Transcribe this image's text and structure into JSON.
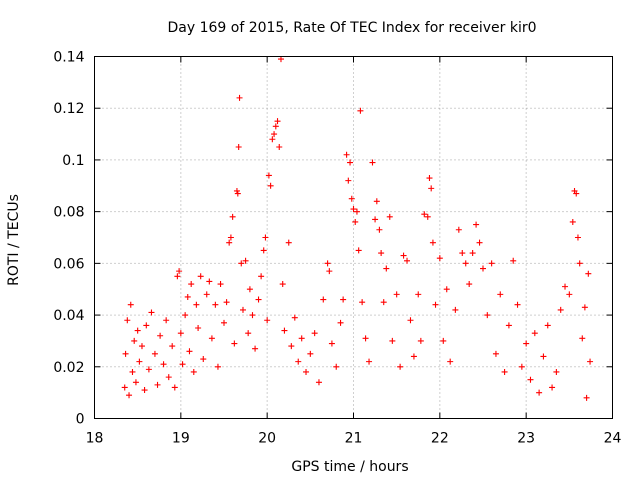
{
  "chart_data": {
    "type": "scatter",
    "title": "Day 169 of 2015, Rate Of TEC Index for receiver kir0",
    "xlabel": "GPS time / hours",
    "ylabel": "ROTI / TECUs",
    "xlim": [
      18,
      24
    ],
    "ylim": [
      0,
      0.14
    ],
    "xticks": [
      18,
      19,
      20,
      21,
      22,
      23,
      24
    ],
    "xtick_labels": [
      "18",
      "19",
      "20",
      "21",
      "22",
      "23",
      "24"
    ],
    "yticks": [
      0,
      0.02,
      0.04,
      0.06,
      0.08,
      0.1,
      0.12,
      0.14
    ],
    "ytick_labels": [
      "0",
      "0.02",
      "0.04",
      "0.06",
      "0.08",
      "0.1",
      "0.12",
      "0.14"
    ],
    "grid": true,
    "marker": "plus",
    "color": "#ff0000",
    "series": [
      {
        "name": "ROTI",
        "points": [
          [
            18.35,
            0.012
          ],
          [
            18.36,
            0.025
          ],
          [
            18.38,
            0.038
          ],
          [
            18.4,
            0.009
          ],
          [
            18.42,
            0.044
          ],
          [
            18.44,
            0.018
          ],
          [
            18.46,
            0.03
          ],
          [
            18.48,
            0.014
          ],
          [
            18.5,
            0.034
          ],
          [
            18.52,
            0.022
          ],
          [
            18.55,
            0.028
          ],
          [
            18.58,
            0.011
          ],
          [
            18.6,
            0.036
          ],
          [
            18.63,
            0.019
          ],
          [
            18.66,
            0.041
          ],
          [
            18.7,
            0.025
          ],
          [
            18.73,
            0.013
          ],
          [
            18.76,
            0.032
          ],
          [
            18.8,
            0.021
          ],
          [
            18.83,
            0.038
          ],
          [
            18.86,
            0.016
          ],
          [
            18.9,
            0.028
          ],
          [
            18.93,
            0.012
          ],
          [
            18.96,
            0.055
          ],
          [
            18.98,
            0.057
          ],
          [
            19.0,
            0.033
          ],
          [
            19.02,
            0.021
          ],
          [
            19.05,
            0.04
          ],
          [
            19.08,
            0.047
          ],
          [
            19.1,
            0.026
          ],
          [
            19.12,
            0.052
          ],
          [
            19.15,
            0.018
          ],
          [
            19.18,
            0.044
          ],
          [
            19.2,
            0.035
          ],
          [
            19.23,
            0.055
          ],
          [
            19.26,
            0.023
          ],
          [
            19.3,
            0.048
          ],
          [
            19.33,
            0.053
          ],
          [
            19.36,
            0.031
          ],
          [
            19.4,
            0.044
          ],
          [
            19.43,
            0.02
          ],
          [
            19.46,
            0.052
          ],
          [
            19.5,
            0.037
          ],
          [
            19.53,
            0.045
          ],
          [
            19.56,
            0.068
          ],
          [
            19.58,
            0.07
          ],
          [
            19.6,
            0.078
          ],
          [
            19.62,
            0.029
          ],
          [
            19.65,
            0.088
          ],
          [
            19.66,
            0.087
          ],
          [
            19.67,
            0.105
          ],
          [
            19.68,
            0.124
          ],
          [
            19.7,
            0.06
          ],
          [
            19.72,
            0.042
          ],
          [
            19.75,
            0.061
          ],
          [
            19.78,
            0.033
          ],
          [
            19.8,
            0.05
          ],
          [
            19.83,
            0.04
          ],
          [
            19.86,
            0.027
          ],
          [
            19.9,
            0.046
          ],
          [
            19.93,
            0.055
          ],
          [
            19.96,
            0.065
          ],
          [
            19.98,
            0.07
          ],
          [
            20.0,
            0.038
          ],
          [
            20.02,
            0.094
          ],
          [
            20.04,
            0.09
          ],
          [
            20.06,
            0.108
          ],
          [
            20.08,
            0.11
          ],
          [
            20.1,
            0.113
          ],
          [
            20.12,
            0.115
          ],
          [
            20.14,
            0.105
          ],
          [
            20.16,
            0.139
          ],
          [
            20.18,
            0.052
          ],
          [
            20.2,
            0.034
          ],
          [
            20.25,
            0.068
          ],
          [
            20.28,
            0.028
          ],
          [
            20.32,
            0.039
          ],
          [
            20.36,
            0.022
          ],
          [
            20.4,
            0.031
          ],
          [
            20.45,
            0.018
          ],
          [
            20.5,
            0.025
          ],
          [
            20.55,
            0.033
          ],
          [
            20.6,
            0.014
          ],
          [
            20.65,
            0.046
          ],
          [
            20.7,
            0.06
          ],
          [
            20.72,
            0.057
          ],
          [
            20.75,
            0.029
          ],
          [
            20.8,
            0.02
          ],
          [
            20.85,
            0.037
          ],
          [
            20.88,
            0.046
          ],
          [
            20.92,
            0.102
          ],
          [
            20.94,
            0.092
          ],
          [
            20.96,
            0.099
          ],
          [
            20.98,
            0.085
          ],
          [
            21.0,
            0.081
          ],
          [
            21.02,
            0.076
          ],
          [
            21.04,
            0.08
          ],
          [
            21.06,
            0.065
          ],
          [
            21.08,
            0.119
          ],
          [
            21.1,
            0.045
          ],
          [
            21.14,
            0.031
          ],
          [
            21.18,
            0.022
          ],
          [
            21.22,
            0.099
          ],
          [
            21.25,
            0.077
          ],
          [
            21.27,
            0.084
          ],
          [
            21.3,
            0.073
          ],
          [
            21.32,
            0.064
          ],
          [
            21.35,
            0.045
          ],
          [
            21.38,
            0.058
          ],
          [
            21.42,
            0.078
          ],
          [
            21.45,
            0.03
          ],
          [
            21.5,
            0.048
          ],
          [
            21.54,
            0.02
          ],
          [
            21.58,
            0.063
          ],
          [
            21.62,
            0.061
          ],
          [
            21.66,
            0.038
          ],
          [
            21.7,
            0.024
          ],
          [
            21.75,
            0.048
          ],
          [
            21.78,
            0.03
          ],
          [
            21.82,
            0.079
          ],
          [
            21.86,
            0.078
          ],
          [
            21.88,
            0.093
          ],
          [
            21.9,
            0.089
          ],
          [
            21.92,
            0.068
          ],
          [
            21.95,
            0.044
          ],
          [
            22.0,
            0.062
          ],
          [
            22.04,
            0.03
          ],
          [
            22.08,
            0.05
          ],
          [
            22.12,
            0.022
          ],
          [
            22.18,
            0.042
          ],
          [
            22.22,
            0.073
          ],
          [
            22.26,
            0.064
          ],
          [
            22.3,
            0.06
          ],
          [
            22.34,
            0.052
          ],
          [
            22.38,
            0.064
          ],
          [
            22.42,
            0.075
          ],
          [
            22.46,
            0.068
          ],
          [
            22.5,
            0.058
          ],
          [
            22.55,
            0.04
          ],
          [
            22.6,
            0.06
          ],
          [
            22.65,
            0.025
          ],
          [
            22.7,
            0.048
          ],
          [
            22.75,
            0.018
          ],
          [
            22.8,
            0.036
          ],
          [
            22.85,
            0.061
          ],
          [
            22.9,
            0.044
          ],
          [
            22.95,
            0.02
          ],
          [
            23.0,
            0.029
          ],
          [
            23.05,
            0.015
          ],
          [
            23.1,
            0.033
          ],
          [
            23.15,
            0.01
          ],
          [
            23.2,
            0.024
          ],
          [
            23.25,
            0.036
          ],
          [
            23.3,
            0.012
          ],
          [
            23.35,
            0.018
          ],
          [
            23.4,
            0.042
          ],
          [
            23.45,
            0.051
          ],
          [
            23.5,
            0.048
          ],
          [
            23.54,
            0.076
          ],
          [
            23.56,
            0.088
          ],
          [
            23.58,
            0.087
          ],
          [
            23.6,
            0.07
          ],
          [
            23.62,
            0.06
          ],
          [
            23.65,
            0.031
          ],
          [
            23.68,
            0.043
          ],
          [
            23.7,
            0.008
          ],
          [
            23.72,
            0.056
          ],
          [
            23.74,
            0.022
          ]
        ]
      }
    ]
  }
}
